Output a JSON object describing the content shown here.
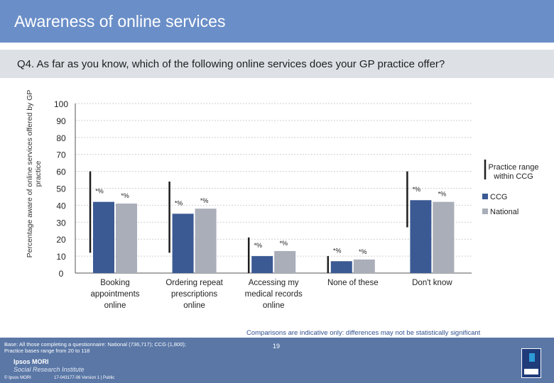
{
  "header": {
    "title": "Awareness of online services"
  },
  "question": "Q4. As far as you know, which of the following online services does your GP practice offer?",
  "footer": {
    "note": "Comparisons are indicative only: differences may not be statistically significant",
    "base_line1": "Base: All those completing a questionnaire: National (736,717); CCG (1,800);",
    "base_line2": "Practice bases range from 20 to 118",
    "brand_line1": "Ipsos MORI",
    "brand_line2": "Social Research Institute",
    "copyright": "© Ipsos MORI",
    "job_ref": "17-043177-06 Version 1 | Public",
    "page": "19"
  },
  "colors": {
    "ccg": "#3b5a94",
    "national": "#a9aeb9",
    "header": "#6a8ec8",
    "footer": "#5a77a6"
  },
  "chart_data": {
    "type": "bar",
    "ylabel": "Percentage aware of online services offered by GP practice",
    "ylim": [
      0,
      100
    ],
    "yticks": [
      0,
      10,
      20,
      30,
      40,
      50,
      60,
      70,
      80,
      90,
      100
    ],
    "categories": [
      [
        "Booking",
        "appointments",
        "online"
      ],
      [
        "Ordering repeat",
        "prescriptions",
        "online"
      ],
      [
        "Accessing my",
        "medical records",
        "online"
      ],
      [
        "None of these"
      ],
      [
        "Don't know"
      ]
    ],
    "series": [
      {
        "name": "CCG",
        "values": [
          42,
          35,
          10,
          7,
          43
        ]
      },
      {
        "name": "National",
        "values": [
          41,
          38,
          13,
          8,
          42
        ]
      }
    ],
    "data_labels": [
      [
        "*%",
        "*%"
      ],
      [
        "*%",
        "*%"
      ],
      [
        "*%",
        "*%"
      ],
      [
        "*%",
        "*%"
      ],
      [
        "*%",
        "*%"
      ]
    ],
    "practice_range": [
      {
        "low": 12,
        "high": 60
      },
      {
        "low": 12,
        "high": 54
      },
      {
        "low": 0,
        "high": 21
      },
      {
        "low": 0,
        "high": 10
      },
      {
        "low": 27,
        "high": 60
      }
    ],
    "legend": {
      "range_label": [
        "Practice range",
        "within CCG"
      ],
      "position": "right"
    },
    "grid": true
  }
}
